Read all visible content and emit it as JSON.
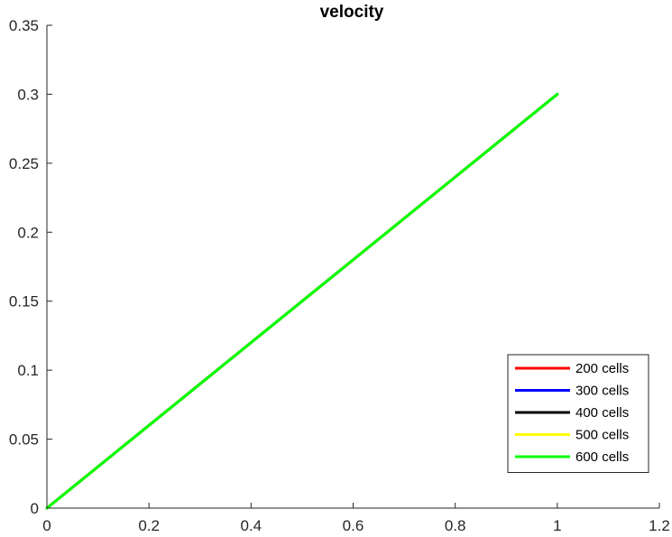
{
  "chart_data": {
    "type": "line",
    "title": "velocity",
    "xlabel": "",
    "ylabel": "",
    "xlim": [
      0,
      1.2
    ],
    "ylim": [
      0,
      0.35
    ],
    "xticks": [
      0,
      0.2,
      0.4,
      0.6,
      0.8,
      1,
      1.2
    ],
    "xtick_labels": [
      "0",
      "0.2",
      "0.4",
      "0.6",
      "0.8",
      "1",
      "1.2"
    ],
    "yticks": [
      0,
      0.05,
      0.1,
      0.15,
      0.2,
      0.25,
      0.3,
      0.35
    ],
    "ytick_labels": [
      "0",
      "0.05",
      "0.1",
      "0.15",
      "0.2",
      "0.25",
      "0.3",
      "0.35"
    ],
    "grid": false,
    "legend_position": "bottom-right",
    "series": [
      {
        "name": "200 cells",
        "color": "#ff0000",
        "x": [
          0,
          0.2,
          0.4,
          0.6,
          0.8,
          1.0
        ],
        "y": [
          0,
          0.06,
          0.12,
          0.18,
          0.24,
          0.3
        ]
      },
      {
        "name": "300 cells",
        "color": "#0000ff",
        "x": [
          0,
          0.2,
          0.4,
          0.6,
          0.8,
          1.0
        ],
        "y": [
          0,
          0.06,
          0.12,
          0.18,
          0.24,
          0.3
        ]
      },
      {
        "name": "400 cells",
        "color": "#000000",
        "x": [
          0,
          0.2,
          0.4,
          0.6,
          0.8,
          1.0
        ],
        "y": [
          0,
          0.06,
          0.12,
          0.18,
          0.24,
          0.3
        ]
      },
      {
        "name": "500 cells",
        "color": "#ffff00",
        "x": [
          0,
          0.2,
          0.4,
          0.6,
          0.8,
          1.0
        ],
        "y": [
          0,
          0.06,
          0.12,
          0.18,
          0.24,
          0.3
        ]
      },
      {
        "name": "600 cells",
        "color": "#00ff00",
        "x": [
          0,
          0.2,
          0.4,
          0.6,
          0.8,
          1.0
        ],
        "y": [
          0,
          0.06,
          0.12,
          0.18,
          0.24,
          0.3
        ]
      }
    ]
  }
}
